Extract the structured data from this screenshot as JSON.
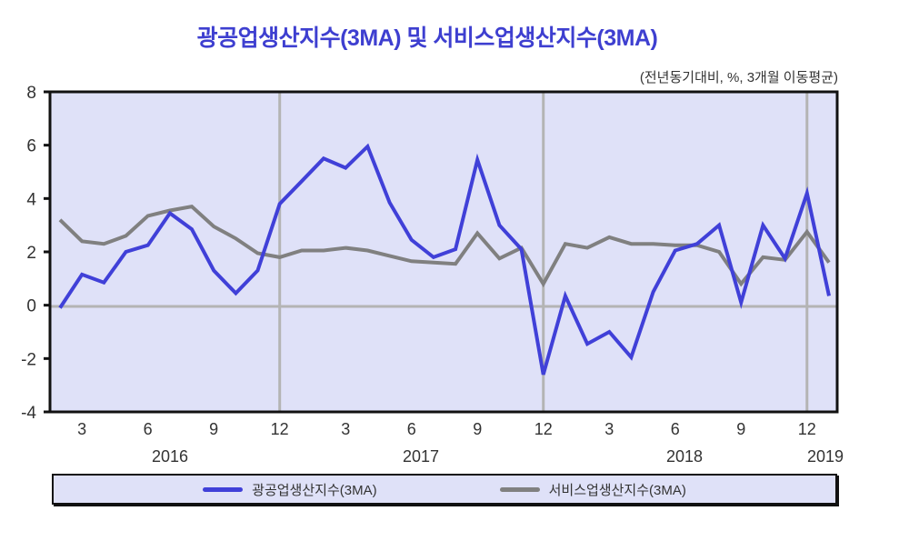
{
  "title": "광공업생산지수(3MA)  및  서비스업생산지수(3MA)",
  "unit_note": "(전년동기대비,   %, 3개월  이동평균)",
  "legend": {
    "items": [
      {
        "label": "광공업생산지수(3MA)",
        "color": "#4040d8"
      },
      {
        "label": "서비스업생산지수(3MA)",
        "color": "#808080"
      }
    ]
  },
  "axis": {
    "y_ticks": [
      "8",
      "6",
      "4",
      "2",
      "0",
      "-2",
      "-4"
    ],
    "x_month_ticks": [
      "3",
      "6",
      "9",
      "12",
      "3",
      "6",
      "9",
      "12",
      "3",
      "6",
      "9",
      "12"
    ],
    "x_year_labels": [
      "2016",
      "2017",
      "2018",
      "2019"
    ]
  },
  "chart_data": {
    "type": "line",
    "title": "광공업생산지수(3MA) 및 서비스업생산지수(3MA)",
    "subtitle": "(전년동기대비, %, 3개월 이동평균)",
    "xlabel": "",
    "ylabel": "%",
    "ylim": [
      -4,
      8
    ],
    "y_ticks": [
      -4,
      -2,
      0,
      2,
      4,
      6,
      8
    ],
    "grid": "vertical lines at December; horizontal line at 0",
    "legend_position": "bottom",
    "x": [
      "2016-02",
      "2016-03",
      "2016-04",
      "2016-05",
      "2016-06",
      "2016-07",
      "2016-08",
      "2016-09",
      "2016-10",
      "2016-11",
      "2016-12",
      "2017-01",
      "2017-02",
      "2017-03",
      "2017-04",
      "2017-05",
      "2017-06",
      "2017-07",
      "2017-08",
      "2017-09",
      "2017-10",
      "2017-11",
      "2017-12",
      "2018-01",
      "2018-02",
      "2018-03",
      "2018-04",
      "2018-05",
      "2018-06",
      "2018-07",
      "2018-08",
      "2018-09",
      "2018-10",
      "2018-11",
      "2018-12",
      "2019-01"
    ],
    "series": [
      {
        "name": "광공업생산지수(3MA)",
        "color": "#4040d8",
        "values": [
          -0.1,
          1.15,
          0.85,
          2.0,
          2.25,
          3.45,
          2.85,
          1.3,
          0.45,
          1.3,
          3.8,
          4.65,
          5.5,
          5.15,
          5.95,
          3.85,
          2.45,
          1.8,
          2.1,
          5.45,
          3.0,
          2.1,
          -2.6,
          0.35,
          -1.45,
          -1.0,
          -1.95,
          0.5,
          2.05,
          2.3,
          3.0,
          0.1,
          3.0,
          1.75,
          4.2,
          0.35
        ]
      },
      {
        "name": "서비스업생산지수(3MA)",
        "color": "#808080",
        "values": [
          3.2,
          2.4,
          2.3,
          2.6,
          3.35,
          3.55,
          3.7,
          2.95,
          2.5,
          1.95,
          1.8,
          2.05,
          2.05,
          2.15,
          2.05,
          1.85,
          1.65,
          1.6,
          1.55,
          2.7,
          1.75,
          2.15,
          0.8,
          2.3,
          2.15,
          2.55,
          2.3,
          2.3,
          2.25,
          2.25,
          2.0,
          0.8,
          1.8,
          1.7,
          2.75,
          1.6
        ]
      }
    ]
  }
}
